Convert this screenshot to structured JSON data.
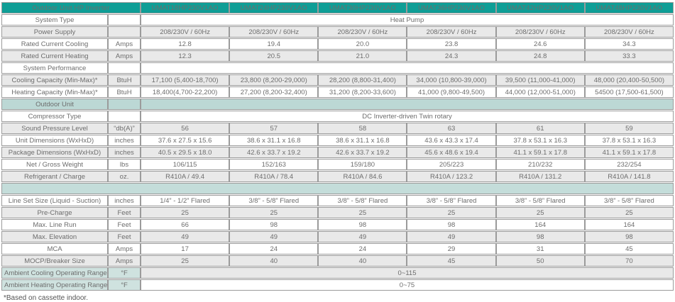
{
  "colors": {
    "header_bg": "#0f9e96",
    "header_text": "#ffffff",
    "section_teal": "#bcd8d5",
    "band_teal": "#c4ddda",
    "label_teal": "#cfe2df",
    "row_gray": "#e9e9e9",
    "row_white": "#ffffff",
    "border": "#9b9b9b",
    "text": "#6d6d6d"
  },
  "table": {
    "title": "Outdoor Unit HP Inverter",
    "models": [
      "UMAT18HP230V1AO",
      "UMAT24HP230V1AO",
      "UMAT30HP230V1AO",
      "UMAT36HP230V1AO",
      "UMAT42HP230V1AO",
      "UMAT48HP230V1AO"
    ],
    "rows": [
      {
        "kind": "span",
        "label": "System Type",
        "unit": "",
        "value": "Heat Pump",
        "shade": "white"
      },
      {
        "kind": "cells",
        "label": "Power Supply",
        "unit": "",
        "values": [
          "208/230V / 60Hz",
          "208/230V / 60Hz",
          "208/230V / 60Hz",
          "208/230V / 60Hz",
          "208/230V / 60Hz",
          "208/230V / 60Hz"
        ],
        "shade": "gray"
      },
      {
        "kind": "cells",
        "label": "Rated Current Cooling",
        "unit": "Amps",
        "values": [
          "12.8",
          "19.4",
          "20.0",
          "23.8",
          "24.6",
          "34.3"
        ],
        "shade": "white"
      },
      {
        "kind": "cells",
        "label": "Rated Current Heating",
        "unit": "Amps",
        "values": [
          "12.3",
          "20.5",
          "21.0",
          "24.3",
          "24.8",
          "33.3"
        ],
        "shade": "gray"
      },
      {
        "kind": "span",
        "label": "System Performance",
        "unit": "",
        "value": "",
        "shade": "white"
      },
      {
        "kind": "cells",
        "label": "Cooling Capacity (Min-Max)*",
        "unit": "BtuH",
        "values": [
          "17,100 (5,400-18,700)",
          "23,800 (8,200-29,000)",
          "28,200 (8,800-31,400)",
          "34,000 (10,800-39,000)",
          "39,500 (11,000-41,000)",
          "48,000 (20,400-50,500)"
        ],
        "shade": "gray"
      },
      {
        "kind": "cells",
        "label": "Heating Capacity (Min-Max)*",
        "unit": "BtuH",
        "values": [
          "18,400(4,700-22,200)",
          "27,200 (8,200-32,400)",
          "31,200 (8,200-33,600)",
          "41,000 (9,800-49,500)",
          "44,000 (12,000-51,000)",
          "54500 (17,500-61,500)"
        ],
        "shade": "white"
      },
      {
        "kind": "span",
        "label": "Outdoor Unit",
        "unit": "",
        "value": "",
        "shade": "teal",
        "label_shade": "teal"
      },
      {
        "kind": "span",
        "label": "Compressor Type",
        "unit": "",
        "value": "DC Inverter-driven Twin rotary",
        "shade": "white"
      },
      {
        "kind": "cells",
        "label": "Sound Pressure Level",
        "unit": "“db(A)”",
        "values": [
          "56",
          "57",
          "58",
          "63",
          "61",
          "59"
        ],
        "shade": "gray"
      },
      {
        "kind": "cells",
        "label": "Unit Dimensions (WxHxD)",
        "unit": "inches",
        "values": [
          "37.6 x 27.5 x 15.6",
          "38.6 x 31.1 x 16.8",
          "38.6 x 31.1 x 16.8",
          "43.6 x 43.3 x 17.4",
          "37.8 x 53.1 x 16.3",
          "37.8 x 53.1 x 16.3"
        ],
        "shade": "white"
      },
      {
        "kind": "cells",
        "label": "Package Dimensions (WxHxD)",
        "unit": "inches",
        "values": [
          "40.5 x 29.5 x 18.0",
          "42.6 x 33.7 x 19.2",
          "42.6 x 33.7 x 19.2",
          "45.6 x 48.6 x 19.4",
          "41.1 x 59.1 x 17.8",
          "41.1 x 59.1 x 17.8"
        ],
        "shade": "gray"
      },
      {
        "kind": "cells",
        "label": "Net / Gross Weight",
        "unit": "lbs",
        "values": [
          "106/115",
          "152/163",
          "159/180",
          "205/223",
          "210/232",
          "232/254"
        ],
        "shade": "white"
      },
      {
        "kind": "cells",
        "label": "Refrigerant / Charge",
        "unit": "oz.",
        "values": [
          "R410A / 49.4",
          "R410A / 78.4",
          "R410A / 84.6",
          "R410A / 123.2",
          "R410A / 131.2",
          "R410A / 141.8"
        ],
        "shade": "gray"
      },
      {
        "kind": "band"
      },
      {
        "kind": "cells",
        "label": "Line Set Size (Liquid - Suction)",
        "unit": "inches",
        "values": [
          "1/4” - 1/2” Flared",
          "3/8” - 5/8” Flared",
          "3/8” - 5/8” Flared",
          "3/8” - 5/8” Flared",
          "3/8” - 5/8” Flared",
          "3/8” - 5/8” Flared"
        ],
        "shade": "white"
      },
      {
        "kind": "cells",
        "label": "Pre-Charge",
        "unit": "Feet",
        "values": [
          "25",
          "25",
          "25",
          "25",
          "25",
          "25"
        ],
        "shade": "gray"
      },
      {
        "kind": "cells",
        "label": "Max. Line Run",
        "unit": "Feet",
        "values": [
          "66",
          "98",
          "98",
          "98",
          "164",
          "164"
        ],
        "shade": "white"
      },
      {
        "kind": "cells",
        "label": "Max. Elevation",
        "unit": "Feet",
        "values": [
          "49",
          "49",
          "49",
          "49",
          "98",
          "98"
        ],
        "shade": "gray"
      },
      {
        "kind": "cells",
        "label": "MCA",
        "unit": "Amps",
        "values": [
          "17",
          "24",
          "24",
          "29",
          "31",
          "45"
        ],
        "shade": "white"
      },
      {
        "kind": "cells",
        "label": "MOCP/Breaker Size",
        "unit": "Amps",
        "values": [
          "25",
          "40",
          "40",
          "45",
          "50",
          "70"
        ],
        "shade": "gray"
      },
      {
        "kind": "span",
        "label": "Ambient Cooling Operating Range",
        "unit": "°F",
        "value": "0~115",
        "shade": "gray",
        "label_shade": "teal"
      },
      {
        "kind": "span",
        "label": "Ambient Heating Operating Range",
        "unit": "°F",
        "value": "0~75",
        "shade": "white",
        "label_shade": "teal"
      }
    ],
    "footnote": "*Based on cassette indoor."
  }
}
